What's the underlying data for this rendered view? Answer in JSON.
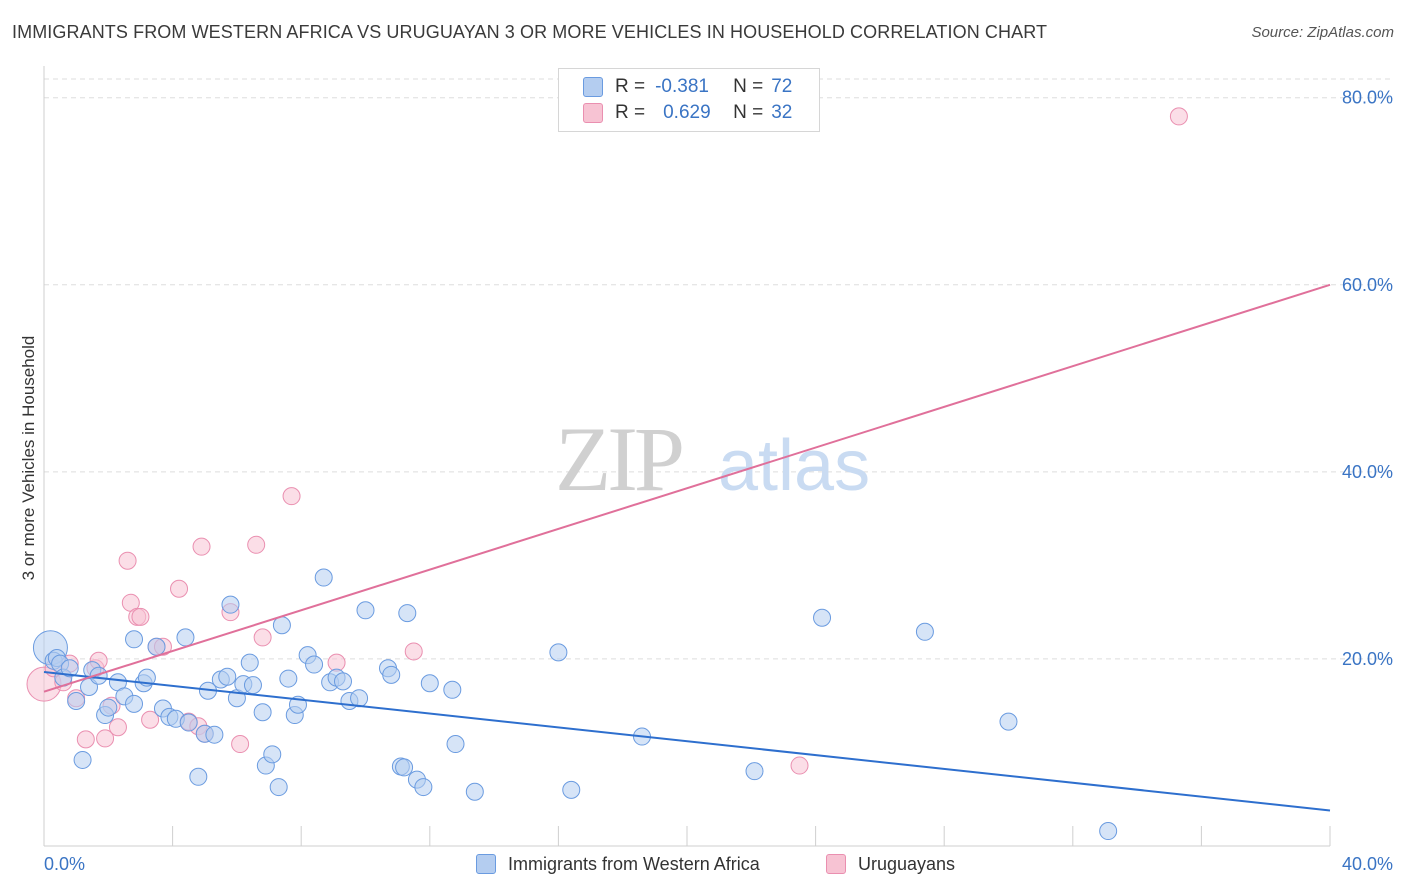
{
  "title": "IMMIGRANTS FROM WESTERN AFRICA VS URUGUAYAN 3 OR MORE VEHICLES IN HOUSEHOLD CORRELATION CHART",
  "source": "Source: ZipAtlas.com",
  "watermark": {
    "zip": "ZIP",
    "atlas": "atlas"
  },
  "legend_top": {
    "rows": [
      {
        "r_label": "R =",
        "r_value": "-0.381",
        "n_label": "N =",
        "n_value": "72"
      },
      {
        "r_label": "R =",
        "r_value": "0.629",
        "n_label": "N =",
        "n_value": "32"
      }
    ]
  },
  "legend_bottom": {
    "series1": "Immigrants from Western Africa",
    "series2": "Uruguayans"
  },
  "colors": {
    "blue_fill": "#b4cdf0",
    "blue_stroke": "#6a9be0",
    "blue_line": "#2e6fce",
    "pink_fill": "#f7c3d3",
    "pink_stroke": "#ea8fb0",
    "pink_line": "#e0709a",
    "tick_label": "#3a74c4",
    "grid": "#dddddd"
  },
  "chart_data": {
    "type": "scatter",
    "title": "IMMIGRANTS FROM WESTERN AFRICA VS URUGUAYAN 3 OR MORE VEHICLES IN HOUSEHOLD CORRELATION CHART",
    "xlabel": "",
    "ylabel": "3 or more Vehicles in Household",
    "xlim": [
      0,
      40
    ],
    "ylim": [
      0,
      82
    ],
    "x_tick_labels": [
      {
        "value": 0,
        "label": "0.0%"
      },
      {
        "value": 40,
        "label": "40.0%"
      }
    ],
    "y_tick_labels": [
      {
        "value": 20,
        "label": "20.0%"
      },
      {
        "value": 40,
        "label": "40.0%"
      },
      {
        "value": 60,
        "label": "60.0%"
      },
      {
        "value": 80,
        "label": "80.0%"
      }
    ],
    "grid": true,
    "legend_position": "top-center",
    "series": [
      {
        "name": "Immigrants from Western Africa",
        "color": "#6a9be0",
        "R": -0.381,
        "N": 72,
        "trend": {
          "x": [
            0,
            40
          ],
          "y": [
            18.6,
            3.8
          ]
        },
        "points": [
          [
            0.2,
            21.2
          ],
          [
            0.3,
            19.8
          ],
          [
            0.4,
            20.1
          ],
          [
            0.5,
            19.5
          ],
          [
            0.6,
            18.0
          ],
          [
            0.8,
            19.0
          ],
          [
            1.0,
            15.5
          ],
          [
            1.2,
            9.2
          ],
          [
            1.4,
            17.0
          ],
          [
            1.5,
            18.8
          ],
          [
            1.7,
            18.2
          ],
          [
            1.9,
            14.0
          ],
          [
            2.0,
            14.8
          ],
          [
            2.3,
            17.5
          ],
          [
            2.5,
            16.0
          ],
          [
            2.8,
            15.2
          ],
          [
            2.8,
            22.1
          ],
          [
            3.1,
            17.4
          ],
          [
            3.2,
            18.0
          ],
          [
            3.5,
            21.3
          ],
          [
            3.7,
            14.7
          ],
          [
            3.9,
            13.8
          ],
          [
            4.1,
            13.6
          ],
          [
            4.4,
            22.3
          ],
          [
            4.5,
            13.2
          ],
          [
            4.8,
            7.4
          ],
          [
            5.0,
            12.0
          ],
          [
            5.1,
            16.6
          ],
          [
            5.3,
            11.9
          ],
          [
            5.5,
            17.8
          ],
          [
            5.7,
            18.1
          ],
          [
            5.8,
            25.8
          ],
          [
            6.0,
            15.8
          ],
          [
            6.2,
            17.3
          ],
          [
            6.4,
            19.6
          ],
          [
            6.5,
            17.2
          ],
          [
            6.8,
            14.3
          ],
          [
            6.9,
            8.6
          ],
          [
            7.1,
            9.8
          ],
          [
            7.3,
            6.3
          ],
          [
            7.4,
            23.6
          ],
          [
            7.6,
            17.9
          ],
          [
            7.8,
            14.0
          ],
          [
            7.9,
            15.1
          ],
          [
            8.2,
            20.4
          ],
          [
            8.4,
            19.4
          ],
          [
            8.7,
            28.7
          ],
          [
            8.9,
            17.5
          ],
          [
            9.1,
            18.0
          ],
          [
            9.3,
            17.6
          ],
          [
            9.5,
            15.5
          ],
          [
            9.8,
            15.8
          ],
          [
            10.0,
            25.2
          ],
          [
            10.7,
            19.0
          ],
          [
            10.8,
            18.3
          ],
          [
            11.1,
            8.5
          ],
          [
            11.2,
            8.4
          ],
          [
            11.3,
            24.9
          ],
          [
            11.6,
            7.1
          ],
          [
            11.8,
            6.3
          ],
          [
            12.0,
            17.4
          ],
          [
            12.7,
            16.7
          ],
          [
            12.8,
            10.9
          ],
          [
            13.4,
            5.8
          ],
          [
            16.0,
            20.7
          ],
          [
            16.4,
            6.0
          ],
          [
            18.6,
            11.7
          ],
          [
            22.1,
            8.0
          ],
          [
            24.2,
            24.4
          ],
          [
            27.4,
            22.9
          ],
          [
            30.0,
            13.3
          ],
          [
            33.1,
            1.6
          ]
        ]
      },
      {
        "name": "Uruguayans",
        "color": "#ea8fb0",
        "R": 0.629,
        "N": 32,
        "trend": {
          "x": [
            0,
            40
          ],
          "y": [
            16.5,
            60.0
          ]
        },
        "points": [
          [
            0.0,
            17.3
          ],
          [
            0.3,
            19.0
          ],
          [
            0.6,
            17.5
          ],
          [
            0.8,
            19.5
          ],
          [
            1.0,
            15.8
          ],
          [
            1.3,
            11.4
          ],
          [
            1.6,
            19.0
          ],
          [
            1.7,
            19.8
          ],
          [
            1.9,
            11.5
          ],
          [
            2.1,
            15.0
          ],
          [
            2.3,
            12.7
          ],
          [
            2.6,
            30.5
          ],
          [
            2.7,
            26.0
          ],
          [
            2.9,
            24.5
          ],
          [
            3.0,
            24.5
          ],
          [
            3.3,
            13.5
          ],
          [
            3.5,
            21.3
          ],
          [
            3.7,
            21.3
          ],
          [
            4.2,
            27.5
          ],
          [
            4.5,
            13.3
          ],
          [
            4.8,
            12.8
          ],
          [
            4.9,
            32.0
          ],
          [
            5.0,
            12.0
          ],
          [
            5.8,
            25.0
          ],
          [
            6.1,
            10.9
          ],
          [
            6.6,
            32.2
          ],
          [
            6.8,
            22.3
          ],
          [
            7.7,
            37.4
          ],
          [
            9.1,
            19.6
          ],
          [
            11.5,
            20.8
          ],
          [
            23.5,
            8.6
          ],
          [
            35.3,
            78.0
          ]
        ]
      }
    ]
  }
}
